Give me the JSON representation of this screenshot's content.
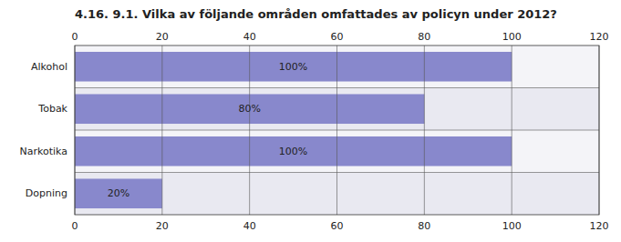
{
  "chart_data": {
    "type": "bar",
    "orientation": "horizontal",
    "title": "4.16. 9.1. Vilka av följande områden omfattades av policyn under 2012?",
    "categories": [
      "Alkohol",
      "Tobak",
      "Narkotika",
      "Dopning"
    ],
    "values": [
      100,
      80,
      100,
      20
    ],
    "value_labels": [
      "100%",
      "80%",
      "100%",
      "20%"
    ],
    "data_labels": true,
    "color": "#8888cc",
    "xlim": [
      0,
      120
    ],
    "xticks": [
      0,
      20,
      40,
      60,
      80,
      100,
      120
    ],
    "grid": true
  }
}
